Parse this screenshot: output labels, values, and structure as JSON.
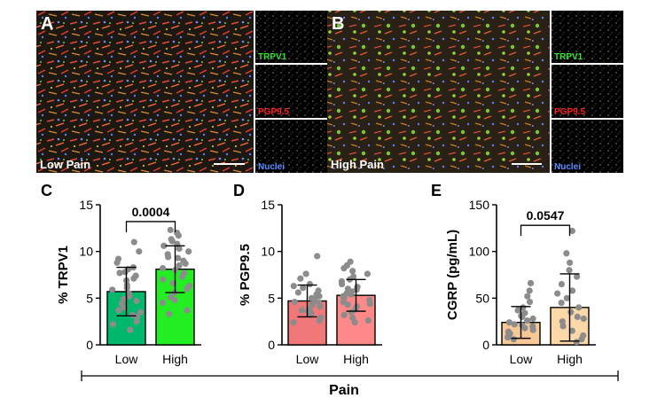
{
  "figure": {
    "microscopy": [
      {
        "letter": "A",
        "caption": "Low Pain",
        "channels": [
          {
            "label": "TRPV1",
            "color": "#2ee62e"
          },
          {
            "label": "PGP9.5",
            "color": "#ff2020"
          },
          {
            "label": "Nuclei",
            "color": "#5a8cff"
          }
        ]
      },
      {
        "letter": "B",
        "caption": "High Pain",
        "channels": [
          {
            "label": "TRPV1",
            "color": "#2ee62e"
          },
          {
            "label": "PGP9.5",
            "color": "#ff2020"
          },
          {
            "label": "Nuclei",
            "color": "#5a8cff"
          }
        ]
      }
    ],
    "group_label": "Pain"
  },
  "chart_data": [
    {
      "type": "bar",
      "panel": "C",
      "ylabel": "% TRPV1",
      "ylim": [
        0,
        15
      ],
      "yticks": [
        0,
        5,
        10,
        15
      ],
      "categories": [
        "Low",
        "High"
      ],
      "colors": [
        "#00b86b",
        "#22ee22"
      ],
      "values": [
        5.7,
        8.1
      ],
      "sd": [
        2.6,
        2.5
      ],
      "significance": {
        "label": "0.0004",
        "y": 13.2
      },
      "points": [
        [
          8.8,
          8.3,
          8.1,
          7.8,
          7.7,
          7.4,
          7.1,
          6.9,
          6.4,
          6.1,
          5.9,
          5.5,
          5.2,
          4.9,
          4.7,
          4.4,
          4.0,
          3.7,
          3.5,
          3.2,
          3.0,
          2.5,
          2.2,
          1.6,
          10.0,
          9.2,
          11.0
        ],
        [
          12.0,
          11.3,
          11.1,
          10.8,
          10.6,
          10.3,
          10.0,
          9.7,
          9.4,
          9.0,
          8.7,
          8.5,
          8.2,
          8.0,
          7.7,
          7.3,
          7.0,
          6.6,
          6.3,
          6.0,
          5.6,
          5.1,
          4.8,
          4.5,
          3.7,
          3.3,
          12.3,
          11.7,
          9.3
        ]
      ]
    },
    {
      "type": "bar",
      "panel": "D",
      "ylabel": "% PGP9.5",
      "ylim": [
        0,
        15
      ],
      "yticks": [
        0,
        5,
        10,
        15
      ],
      "categories": [
        "Low",
        "High"
      ],
      "colors": [
        "#f07878",
        "#ff8888"
      ],
      "values": [
        4.7,
        5.3
      ],
      "sd": [
        1.7,
        1.7
      ],
      "points": [
        [
          9.5,
          7.6,
          7.1,
          6.5,
          6.3,
          6.1,
          5.8,
          5.6,
          5.2,
          5.0,
          4.8,
          4.6,
          4.3,
          4.1,
          3.8,
          3.6,
          3.4,
          3.2,
          2.9,
          2.6,
          2.4,
          5.4,
          4.5,
          3.7
        ],
        [
          8.9,
          8.5,
          8.2,
          7.9,
          7.6,
          7.3,
          7.0,
          6.8,
          6.5,
          6.2,
          5.9,
          5.7,
          5.4,
          5.2,
          5.0,
          4.8,
          4.6,
          4.3,
          4.1,
          3.8,
          3.5,
          3.2,
          2.9,
          2.6,
          2.4,
          6.0,
          5.5,
          4.4
        ]
      ]
    },
    {
      "type": "bar",
      "panel": "E",
      "ylabel": "CGRP (pg/mL)",
      "ylim": [
        0,
        150
      ],
      "yticks": [
        0,
        50,
        100,
        150
      ],
      "categories": [
        "Low",
        "High"
      ],
      "colors": [
        "#f8c896",
        "#fcd8a8"
      ],
      "values": [
        24,
        40
      ],
      "sd": [
        17,
        36
      ],
      "significance": {
        "label": "0.0547",
        "y": 128
      },
      "points": [
        [
          66,
          58,
          52,
          46,
          40,
          37,
          34,
          31,
          28,
          26,
          24,
          22,
          20,
          18,
          16,
          14,
          12,
          10,
          8,
          6,
          30,
          21
        ],
        [
          122,
          98,
          88,
          80,
          73,
          65,
          58,
          50,
          45,
          40,
          35,
          30,
          25,
          20,
          15,
          10,
          6,
          3,
          55,
          28
        ]
      ]
    }
  ]
}
